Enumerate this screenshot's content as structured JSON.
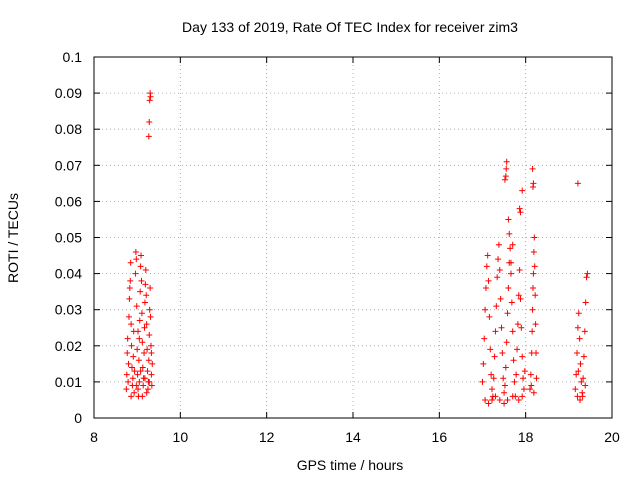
{
  "chart_data": {
    "type": "scatter",
    "title": "Day 133 of 2019, Rate Of TEC Index for receiver zim3",
    "xlabel": "GPS time / hours",
    "ylabel": "ROTI / TECUs",
    "xlim": [
      8,
      20
    ],
    "ylim": [
      0,
      0.1
    ],
    "xticks": [
      "8",
      "10",
      "12",
      "14",
      "16",
      "18",
      "20"
    ],
    "yticks": [
      "0",
      "0.01",
      "0.02",
      "0.03",
      "0.04",
      "0.05",
      "0.06",
      "0.07",
      "0.08",
      "0.09",
      "0.1"
    ],
    "grid": true,
    "marker": "+",
    "color": "#ff0000",
    "series": [
      {
        "name": "ROTI",
        "points": [
          [
            8.75,
            0.008
          ],
          [
            8.76,
            0.012
          ],
          [
            8.77,
            0.018
          ],
          [
            8.78,
            0.022
          ],
          [
            8.79,
            0.01
          ],
          [
            8.8,
            0.015
          ],
          [
            8.81,
            0.028
          ],
          [
            8.82,
            0.033
          ],
          [
            8.83,
            0.036
          ],
          [
            8.84,
            0.038
          ],
          [
            8.85,
            0.043
          ],
          [
            8.86,
            0.026
          ],
          [
            8.87,
            0.02
          ],
          [
            8.88,
            0.014
          ],
          [
            8.89,
            0.009
          ],
          [
            8.9,
            0.011
          ],
          [
            8.91,
            0.017
          ],
          [
            8.92,
            0.024
          ],
          [
            8.93,
            0.007
          ],
          [
            8.94,
            0.013
          ],
          [
            8.96,
            0.04
          ],
          [
            8.97,
            0.046
          ],
          [
            8.98,
            0.044
          ],
          [
            8.99,
            0.031
          ],
          [
            9.0,
            0.019
          ],
          [
            9.01,
            0.012
          ],
          [
            9.02,
            0.008
          ],
          [
            9.03,
            0.006
          ],
          [
            9.04,
            0.016
          ],
          [
            9.05,
            0.022
          ],
          [
            9.06,
            0.027
          ],
          [
            9.07,
            0.035
          ],
          [
            9.08,
            0.042
          ],
          [
            9.09,
            0.045
          ],
          [
            9.1,
            0.038
          ],
          [
            9.11,
            0.029
          ],
          [
            9.12,
            0.021
          ],
          [
            9.13,
            0.014
          ],
          [
            9.14,
            0.009
          ],
          [
            9.15,
            0.011
          ],
          [
            9.16,
            0.018
          ],
          [
            9.17,
            0.025
          ],
          [
            9.18,
            0.032
          ],
          [
            9.19,
            0.037
          ],
          [
            9.2,
            0.041
          ],
          [
            9.21,
            0.034
          ],
          [
            9.22,
            0.026
          ],
          [
            9.23,
            0.019
          ],
          [
            9.24,
            0.013
          ],
          [
            9.25,
            0.008
          ],
          [
            9.26,
            0.01
          ],
          [
            9.27,
            0.016
          ],
          [
            9.28,
            0.023
          ],
          [
            9.29,
            0.03
          ],
          [
            9.3,
            0.036
          ],
          [
            9.31,
            0.028
          ],
          [
            9.32,
            0.02
          ],
          [
            9.33,
            0.012
          ],
          [
            9.34,
            0.009
          ],
          [
            9.35,
            0.015
          ],
          [
            9.05,
            0.01
          ],
          [
            9.08,
            0.013
          ],
          [
            9.12,
            0.006
          ],
          [
            9.18,
            0.011
          ],
          [
            9.22,
            0.007
          ],
          [
            9.28,
            0.01
          ],
          [
            9.33,
            0.018
          ],
          [
            8.86,
            0.006
          ],
          [
            8.98,
            0.009
          ],
          [
            9.02,
            0.024
          ],
          [
            9.27,
            0.078
          ],
          [
            9.28,
            0.082
          ],
          [
            9.29,
            0.088
          ],
          [
            9.3,
            0.09
          ],
          [
            9.31,
            0.089
          ],
          [
            17.0,
            0.01
          ],
          [
            17.02,
            0.015
          ],
          [
            17.04,
            0.022
          ],
          [
            17.06,
            0.03
          ],
          [
            17.08,
            0.036
          ],
          [
            17.1,
            0.042
          ],
          [
            17.12,
            0.045
          ],
          [
            17.14,
            0.038
          ],
          [
            17.16,
            0.028
          ],
          [
            17.18,
            0.019
          ],
          [
            17.2,
            0.012
          ],
          [
            17.22,
            0.008
          ],
          [
            17.24,
            0.006
          ],
          [
            17.26,
            0.011
          ],
          [
            17.28,
            0.017
          ],
          [
            17.3,
            0.024
          ],
          [
            17.32,
            0.031
          ],
          [
            17.34,
            0.039
          ],
          [
            17.36,
            0.044
          ],
          [
            17.38,
            0.048
          ],
          [
            17.4,
            0.041
          ],
          [
            17.42,
            0.033
          ],
          [
            17.44,
            0.025
          ],
          [
            17.46,
            0.018
          ],
          [
            17.48,
            0.011
          ],
          [
            17.5,
            0.007
          ],
          [
            17.52,
            0.009
          ],
          [
            17.54,
            0.014
          ],
          [
            17.56,
            0.021
          ],
          [
            17.58,
            0.029
          ],
          [
            17.6,
            0.036
          ],
          [
            17.62,
            0.043
          ],
          [
            17.64,
            0.047
          ],
          [
            17.66,
            0.04
          ],
          [
            17.68,
            0.032
          ],
          [
            17.7,
            0.024
          ],
          [
            17.72,
            0.016
          ],
          [
            17.74,
            0.01
          ],
          [
            17.76,
            0.006
          ],
          [
            17.78,
            0.012
          ],
          [
            17.8,
            0.019
          ],
          [
            17.82,
            0.026
          ],
          [
            17.84,
            0.034
          ],
          [
            17.86,
            0.041
          ],
          [
            17.88,
            0.033
          ],
          [
            17.9,
            0.025
          ],
          [
            17.92,
            0.017
          ],
          [
            17.94,
            0.011
          ],
          [
            17.96,
            0.008
          ],
          [
            17.98,
            0.013
          ],
          [
            17.06,
            0.005
          ],
          [
            17.14,
            0.004
          ],
          [
            17.22,
            0.005
          ],
          [
            17.3,
            0.006
          ],
          [
            17.4,
            0.005
          ],
          [
            17.5,
            0.004
          ],
          [
            17.58,
            0.005
          ],
          [
            17.7,
            0.006
          ],
          [
            17.84,
            0.005
          ],
          [
            17.92,
            0.006
          ],
          [
            17.52,
            0.066
          ],
          [
            17.54,
            0.067
          ],
          [
            17.55,
            0.069
          ],
          [
            17.56,
            0.071
          ],
          [
            17.6,
            0.055
          ],
          [
            17.62,
            0.051
          ],
          [
            17.66,
            0.043
          ],
          [
            17.7,
            0.048
          ],
          [
            17.86,
            0.058
          ],
          [
            17.88,
            0.057
          ],
          [
            17.92,
            0.063
          ],
          [
            18.17,
            0.064
          ],
          [
            18.18,
            0.065
          ],
          [
            18.16,
            0.069
          ],
          [
            18.1,
            0.008
          ],
          [
            18.12,
            0.012
          ],
          [
            18.14,
            0.018
          ],
          [
            18.15,
            0.024
          ],
          [
            18.16,
            0.03
          ],
          [
            18.17,
            0.036
          ],
          [
            18.18,
            0.04
          ],
          [
            18.19,
            0.046
          ],
          [
            18.2,
            0.05
          ],
          [
            18.21,
            0.042
          ],
          [
            18.22,
            0.034
          ],
          [
            18.23,
            0.026
          ],
          [
            18.24,
            0.018
          ],
          [
            18.25,
            0.011
          ],
          [
            18.13,
            0.009
          ],
          [
            18.19,
            0.007
          ],
          [
            19.15,
            0.008
          ],
          [
            19.17,
            0.012
          ],
          [
            19.19,
            0.018
          ],
          [
            19.21,
            0.025
          ],
          [
            19.23,
            0.029
          ],
          [
            19.25,
            0.022
          ],
          [
            19.27,
            0.015
          ],
          [
            19.29,
            0.01
          ],
          [
            19.31,
            0.007
          ],
          [
            19.33,
            0.011
          ],
          [
            19.35,
            0.017
          ],
          [
            19.37,
            0.024
          ],
          [
            19.39,
            0.032
          ],
          [
            19.41,
            0.039
          ],
          [
            19.43,
            0.04
          ],
          [
            19.2,
            0.006
          ],
          [
            19.26,
            0.005
          ],
          [
            19.32,
            0.006
          ],
          [
            19.38,
            0.009
          ],
          [
            19.22,
            0.013
          ],
          [
            19.21,
            0.065
          ]
        ]
      }
    ]
  }
}
